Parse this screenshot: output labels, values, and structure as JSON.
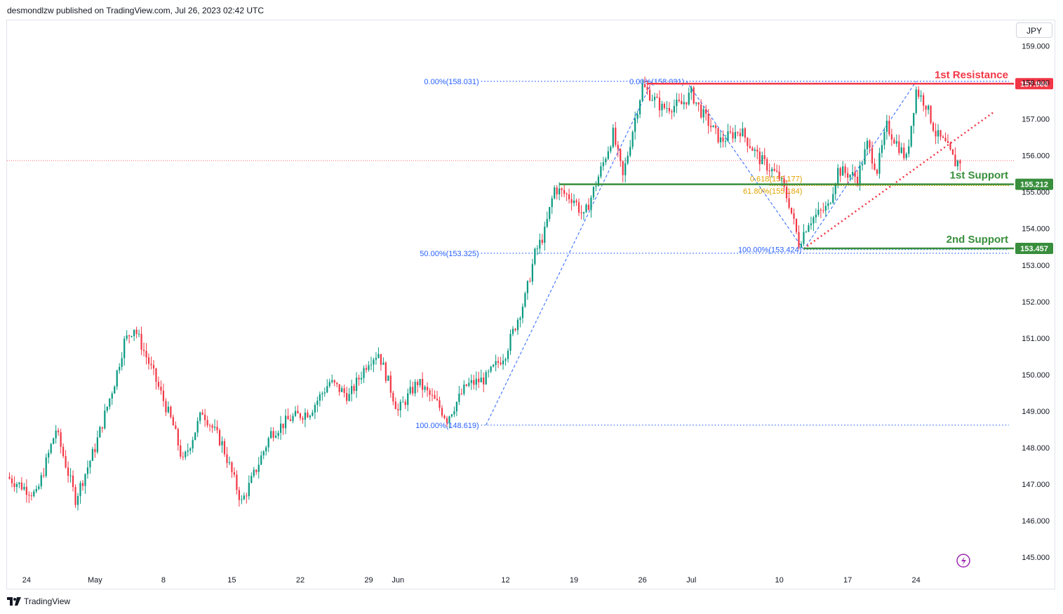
{
  "header": {
    "publish_line": "desmondlzw published on TradingView.com, Jul 26, 2023 02:42 UTC"
  },
  "currency_button": {
    "label": "JPY"
  },
  "footer": {
    "brand": "TradingView"
  },
  "colors": {
    "up": "#089981",
    "down": "#f23645",
    "fib_blue": "#2962ff",
    "resistance": "#f23645",
    "support": "#388e3c",
    "golden": "#e0a300",
    "dotted_red": "#f23645"
  },
  "chart_data": {
    "type": "candlestick",
    "symbol_currency": "JPY",
    "ylim": [
      144.6,
      159.7
    ],
    "y_ticks": [
      "159.000",
      "158.000",
      "157.000",
      "156.000",
      "155.000",
      "154.000",
      "153.000",
      "152.000",
      "151.000",
      "150.000",
      "149.000",
      "148.000",
      "147.000",
      "146.000",
      "145.000"
    ],
    "x_ticks": [
      "24",
      "May",
      "8",
      "15",
      "22",
      "29",
      "Jun",
      "12",
      "19",
      "26",
      "Jul",
      "10",
      "17",
      "24"
    ],
    "x_tick_days": [
      -7,
      0,
      7,
      14,
      21,
      28,
      31,
      42,
      49,
      56,
      61,
      70,
      77,
      84
    ],
    "x_range_days": [
      -9,
      94
    ],
    "last_price": 155.86,
    "anchors": [
      {
        "d": -9,
        "p": 147.2
      },
      {
        "d": -6,
        "p": 146.7
      },
      {
        "d": -4,
        "p": 148.5
      },
      {
        "d": -2,
        "p": 146.6
      },
      {
        "d": 0,
        "p": 148.0
      },
      {
        "d": 2,
        "p": 149.8
      },
      {
        "d": 3,
        "p": 150.9
      },
      {
        "d": 4,
        "p": 151.3
      },
      {
        "d": 6,
        "p": 150.0
      },
      {
        "d": 8,
        "p": 148.6
      },
      {
        "d": 9,
        "p": 147.6
      },
      {
        "d": 10,
        "p": 148.3
      },
      {
        "d": 11,
        "p": 149.0
      },
      {
        "d": 13,
        "p": 148.1
      },
      {
        "d": 15,
        "p": 146.5
      },
      {
        "d": 16,
        "p": 147.1
      },
      {
        "d": 18,
        "p": 148.4
      },
      {
        "d": 20,
        "p": 148.8
      },
      {
        "d": 22,
        "p": 149.0
      },
      {
        "d": 24,
        "p": 149.8
      },
      {
        "d": 26,
        "p": 149.4
      },
      {
        "d": 28,
        "p": 150.4
      },
      {
        "d": 29,
        "p": 150.6
      },
      {
        "d": 31,
        "p": 149.0
      },
      {
        "d": 33,
        "p": 149.8
      },
      {
        "d": 35,
        "p": 149.2
      },
      {
        "d": 36,
        "p": 148.8
      },
      {
        "d": 38,
        "p": 149.7
      },
      {
        "d": 40,
        "p": 149.9
      },
      {
        "d": 42,
        "p": 150.6
      },
      {
        "d": 44,
        "p": 152.1
      },
      {
        "d": 45,
        "p": 153.3
      },
      {
        "d": 46,
        "p": 153.9
      },
      {
        "d": 47,
        "p": 155.1
      },
      {
        "d": 49,
        "p": 154.8
      },
      {
        "d": 50,
        "p": 154.3
      },
      {
        "d": 52,
        "p": 155.8
      },
      {
        "d": 53,
        "p": 156.6
      },
      {
        "d": 54,
        "p": 155.4
      },
      {
        "d": 55,
        "p": 156.7
      },
      {
        "d": 56,
        "p": 157.9
      },
      {
        "d": 58,
        "p": 157.3
      },
      {
        "d": 60,
        "p": 157.4
      },
      {
        "d": 61,
        "p": 157.7
      },
      {
        "d": 62,
        "p": 157.2
      },
      {
        "d": 64,
        "p": 156.4
      },
      {
        "d": 66,
        "p": 156.7
      },
      {
        "d": 68,
        "p": 155.9
      },
      {
        "d": 70,
        "p": 155.4
      },
      {
        "d": 71,
        "p": 154.7
      },
      {
        "d": 72,
        "p": 153.6
      },
      {
        "d": 73,
        "p": 154.2
      },
      {
        "d": 75,
        "p": 154.6
      },
      {
        "d": 76,
        "p": 155.6
      },
      {
        "d": 78,
        "p": 155.4
      },
      {
        "d": 79,
        "p": 156.3
      },
      {
        "d": 80,
        "p": 155.6
      },
      {
        "d": 81,
        "p": 156.8
      },
      {
        "d": 83,
        "p": 155.9
      },
      {
        "d": 84,
        "p": 157.8
      },
      {
        "d": 85,
        "p": 157.4
      },
      {
        "d": 86,
        "p": 156.6
      },
      {
        "d": 87,
        "p": 156.3
      },
      {
        "d": 88,
        "p": 155.8
      },
      {
        "d": 88.5,
        "p": 155.86
      }
    ],
    "fib_labels": [
      {
        "text": "0.00%(158.031)",
        "value": 158.031,
        "d_start": 39.5,
        "d_end": 93.5
      },
      {
        "text": "50.00%(153.325)",
        "value": 153.325,
        "d_start": 39.5,
        "d_end": 93.5
      },
      {
        "text": "100.00%(148.619)",
        "value": 148.619,
        "d_start": 39.5,
        "d_end": 93.5
      },
      {
        "text": "0.00%(158.031)",
        "value": 158.031,
        "d_start": 60.5,
        "d_end": 93.5
      },
      {
        "text": "100.00%(153.424)",
        "value": 153.424,
        "d_start": 72.5,
        "d_end": 93.5
      }
    ],
    "golden_labels": [
      {
        "text": "0.618(155.177)",
        "value": 155.177
      },
      {
        "text": "61.80%(155.184)",
        "value": 155.184
      }
    ],
    "levels": [
      {
        "name": "1st Resistance",
        "value": 157.966,
        "tag": "157.966",
        "kind": "resistance"
      },
      {
        "name": "1st Support",
        "value": 155.212,
        "tag": "155.212",
        "kind": "support"
      },
      {
        "name": "2nd Support",
        "value": 153.457,
        "tag": "153.457",
        "kind": "support"
      }
    ]
  }
}
